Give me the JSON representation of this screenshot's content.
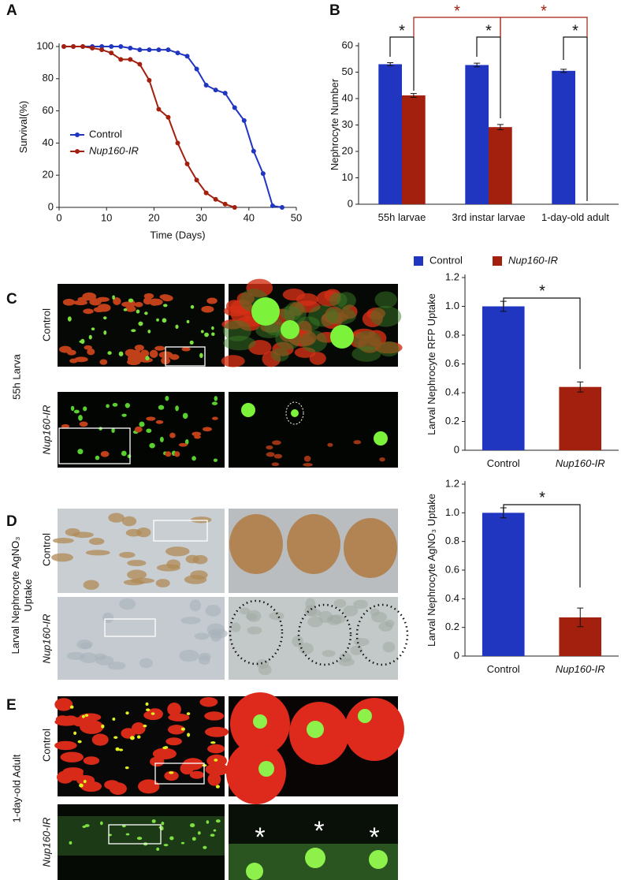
{
  "chart_data": [
    {
      "type": "line",
      "x_label": "Time (Days)",
      "y_label": "Survival(%)",
      "x": [
        1,
        3,
        5,
        7,
        9,
        11,
        13,
        15,
        17,
        19,
        21,
        23,
        25,
        27,
        29,
        31,
        33,
        35,
        37,
        39,
        41,
        43,
        45,
        47
      ],
      "series": [
        {
          "name": "Control",
          "color": "#2035c0",
          "values": [
            100,
            100,
            100,
            100,
            100,
            100,
            100,
            99,
            98,
            98,
            98,
            98,
            96,
            94,
            86,
            76,
            73,
            71,
            62,
            54,
            35,
            21,
            1,
            0
          ]
        },
        {
          "name": "Nup160-IR",
          "color": "#a3200f",
          "values": [
            100,
            100,
            100,
            99,
            98,
            96,
            92,
            92,
            89,
            79,
            61,
            56,
            40,
            27,
            17,
            9,
            5,
            2,
            0,
            null,
            null,
            null,
            null,
            null
          ]
        }
      ],
      "xlim": [
        0,
        50
      ],
      "xticks": [
        0,
        10,
        20,
        30,
        40,
        50
      ],
      "ylim": [
        0,
        100
      ],
      "yticks": [
        0,
        20,
        40,
        60,
        80,
        100
      ],
      "legend": "center-left"
    },
    {
      "type": "bar",
      "y_label": "Nephrocyte Number",
      "categories": [
        "55h larvae",
        "3rd instar larvae",
        "1-day-old adult"
      ],
      "series": [
        {
          "name": "Control",
          "color": "#2035c0",
          "values": [
            53,
            52.7,
            50.5
          ],
          "errors": [
            0.6,
            0.7,
            0.6
          ]
        },
        {
          "name": "Nup160-IR",
          "color": "#a3200f",
          "values": [
            41.2,
            29.2,
            0
          ],
          "errors": [
            0.7,
            1,
            0
          ]
        }
      ],
      "ylim": [
        0,
        60
      ],
      "yticks": [
        0,
        10,
        20,
        30,
        40,
        50,
        60
      ],
      "legend": "bottom",
      "annotations": [
        "*",
        "*",
        "*",
        "*",
        "*"
      ]
    },
    {
      "type": "bar",
      "y_label": "Larval Nephrocyte RFP Uptake",
      "categories": [
        "Control",
        "Nup160-IR"
      ],
      "values": [
        1,
        0.44
      ],
      "errors": [
        0.035,
        0.035
      ],
      "colors": [
        "#2035c0",
        "#a3200f"
      ],
      "ylim": [
        0,
        1.2
      ],
      "yticks": [
        0,
        0.2,
        0.4,
        0.6,
        0.8,
        {
          "value": 1,
          "label": "1.0"
        },
        1.2
      ],
      "annotations": [
        "*"
      ]
    },
    {
      "type": "bar",
      "y_label": "Larval Nephrocyte AgNO₃ Uptake",
      "categories": [
        "Control",
        "Nup160-IR"
      ],
      "values": [
        1,
        0.27
      ],
      "errors": [
        0.035,
        0.065
      ],
      "colors": [
        "#2035c0",
        "#a3200f"
      ],
      "ylim": [
        0,
        1.2
      ],
      "yticks": [
        0,
        0.2,
        0.4,
        0.6,
        0.8,
        {
          "value": 1,
          "label": "1.0"
        },
        1.2
      ],
      "annotations": [
        "*"
      ]
    }
  ],
  "panels": {
    "labels": [
      "A",
      "B",
      "C",
      "D",
      "E"
    ],
    "C": {
      "side": "55h Larva",
      "rows": [
        "Control",
        "Nup160-IR"
      ]
    },
    "D": {
      "side": "Larval Nephrocyte AgNO₃ Uptake",
      "rows": [
        "Control",
        "Nup160-IR"
      ]
    },
    "E": {
      "side": "1-day-old Adult",
      "rows": [
        "Control",
        "Nup160-IR"
      ],
      "marks": [
        "*",
        "*",
        "*"
      ]
    }
  }
}
